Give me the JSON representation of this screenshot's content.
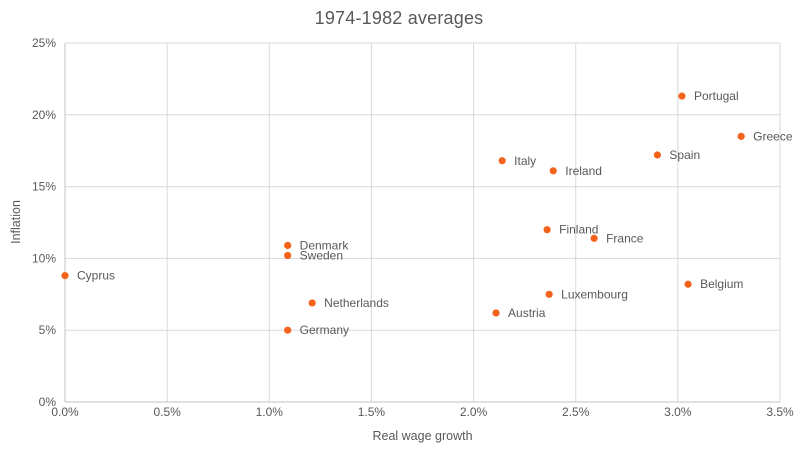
{
  "chart_data": {
    "type": "scatter",
    "title": "1974-1982 averages",
    "xlabel": "Real wage growth",
    "ylabel": "Inflation",
    "xlim": [
      0,
      3.5
    ],
    "ylim": [
      0,
      25
    ],
    "xticks": [
      0,
      0.5,
      1.0,
      1.5,
      2.0,
      2.5,
      3.0,
      3.5
    ],
    "xtick_labels": [
      "0.0%",
      "0.5%",
      "1.0%",
      "1.5%",
      "2.0%",
      "2.5%",
      "3.0%",
      "3.5%"
    ],
    "yticks": [
      0,
      5,
      10,
      15,
      20,
      25
    ],
    "ytick_labels": [
      "0%",
      "5%",
      "10%",
      "15%",
      "20%",
      "25%"
    ],
    "grid": true,
    "legend": "none",
    "points": [
      {
        "label": "Cyprus",
        "x": 0.0,
        "y": 8.8
      },
      {
        "label": "Germany",
        "x": 1.09,
        "y": 5.0
      },
      {
        "label": "Sweden",
        "x": 1.09,
        "y": 10.2
      },
      {
        "label": "Denmark",
        "x": 1.09,
        "y": 10.9
      },
      {
        "label": "Netherlands",
        "x": 1.21,
        "y": 6.9
      },
      {
        "label": "Austria",
        "x": 2.11,
        "y": 6.2
      },
      {
        "label": "Italy",
        "x": 2.14,
        "y": 16.8
      },
      {
        "label": "Finland",
        "x": 2.36,
        "y": 12.0
      },
      {
        "label": "Luxembourg",
        "x": 2.37,
        "y": 7.5
      },
      {
        "label": "Ireland",
        "x": 2.39,
        "y": 16.1
      },
      {
        "label": "France",
        "x": 2.59,
        "y": 11.4
      },
      {
        "label": "Spain",
        "x": 2.9,
        "y": 17.2
      },
      {
        "label": "Portugal",
        "x": 3.02,
        "y": 21.3
      },
      {
        "label": "Belgium",
        "x": 3.05,
        "y": 8.2
      },
      {
        "label": "Greece",
        "x": 3.31,
        "y": 18.5
      }
    ]
  },
  "colors": {
    "accent": "#f4631c",
    "grid": "#d9d9d9",
    "axis": "#c3c3c3",
    "text": "#595959",
    "background": "#ffffff"
  }
}
